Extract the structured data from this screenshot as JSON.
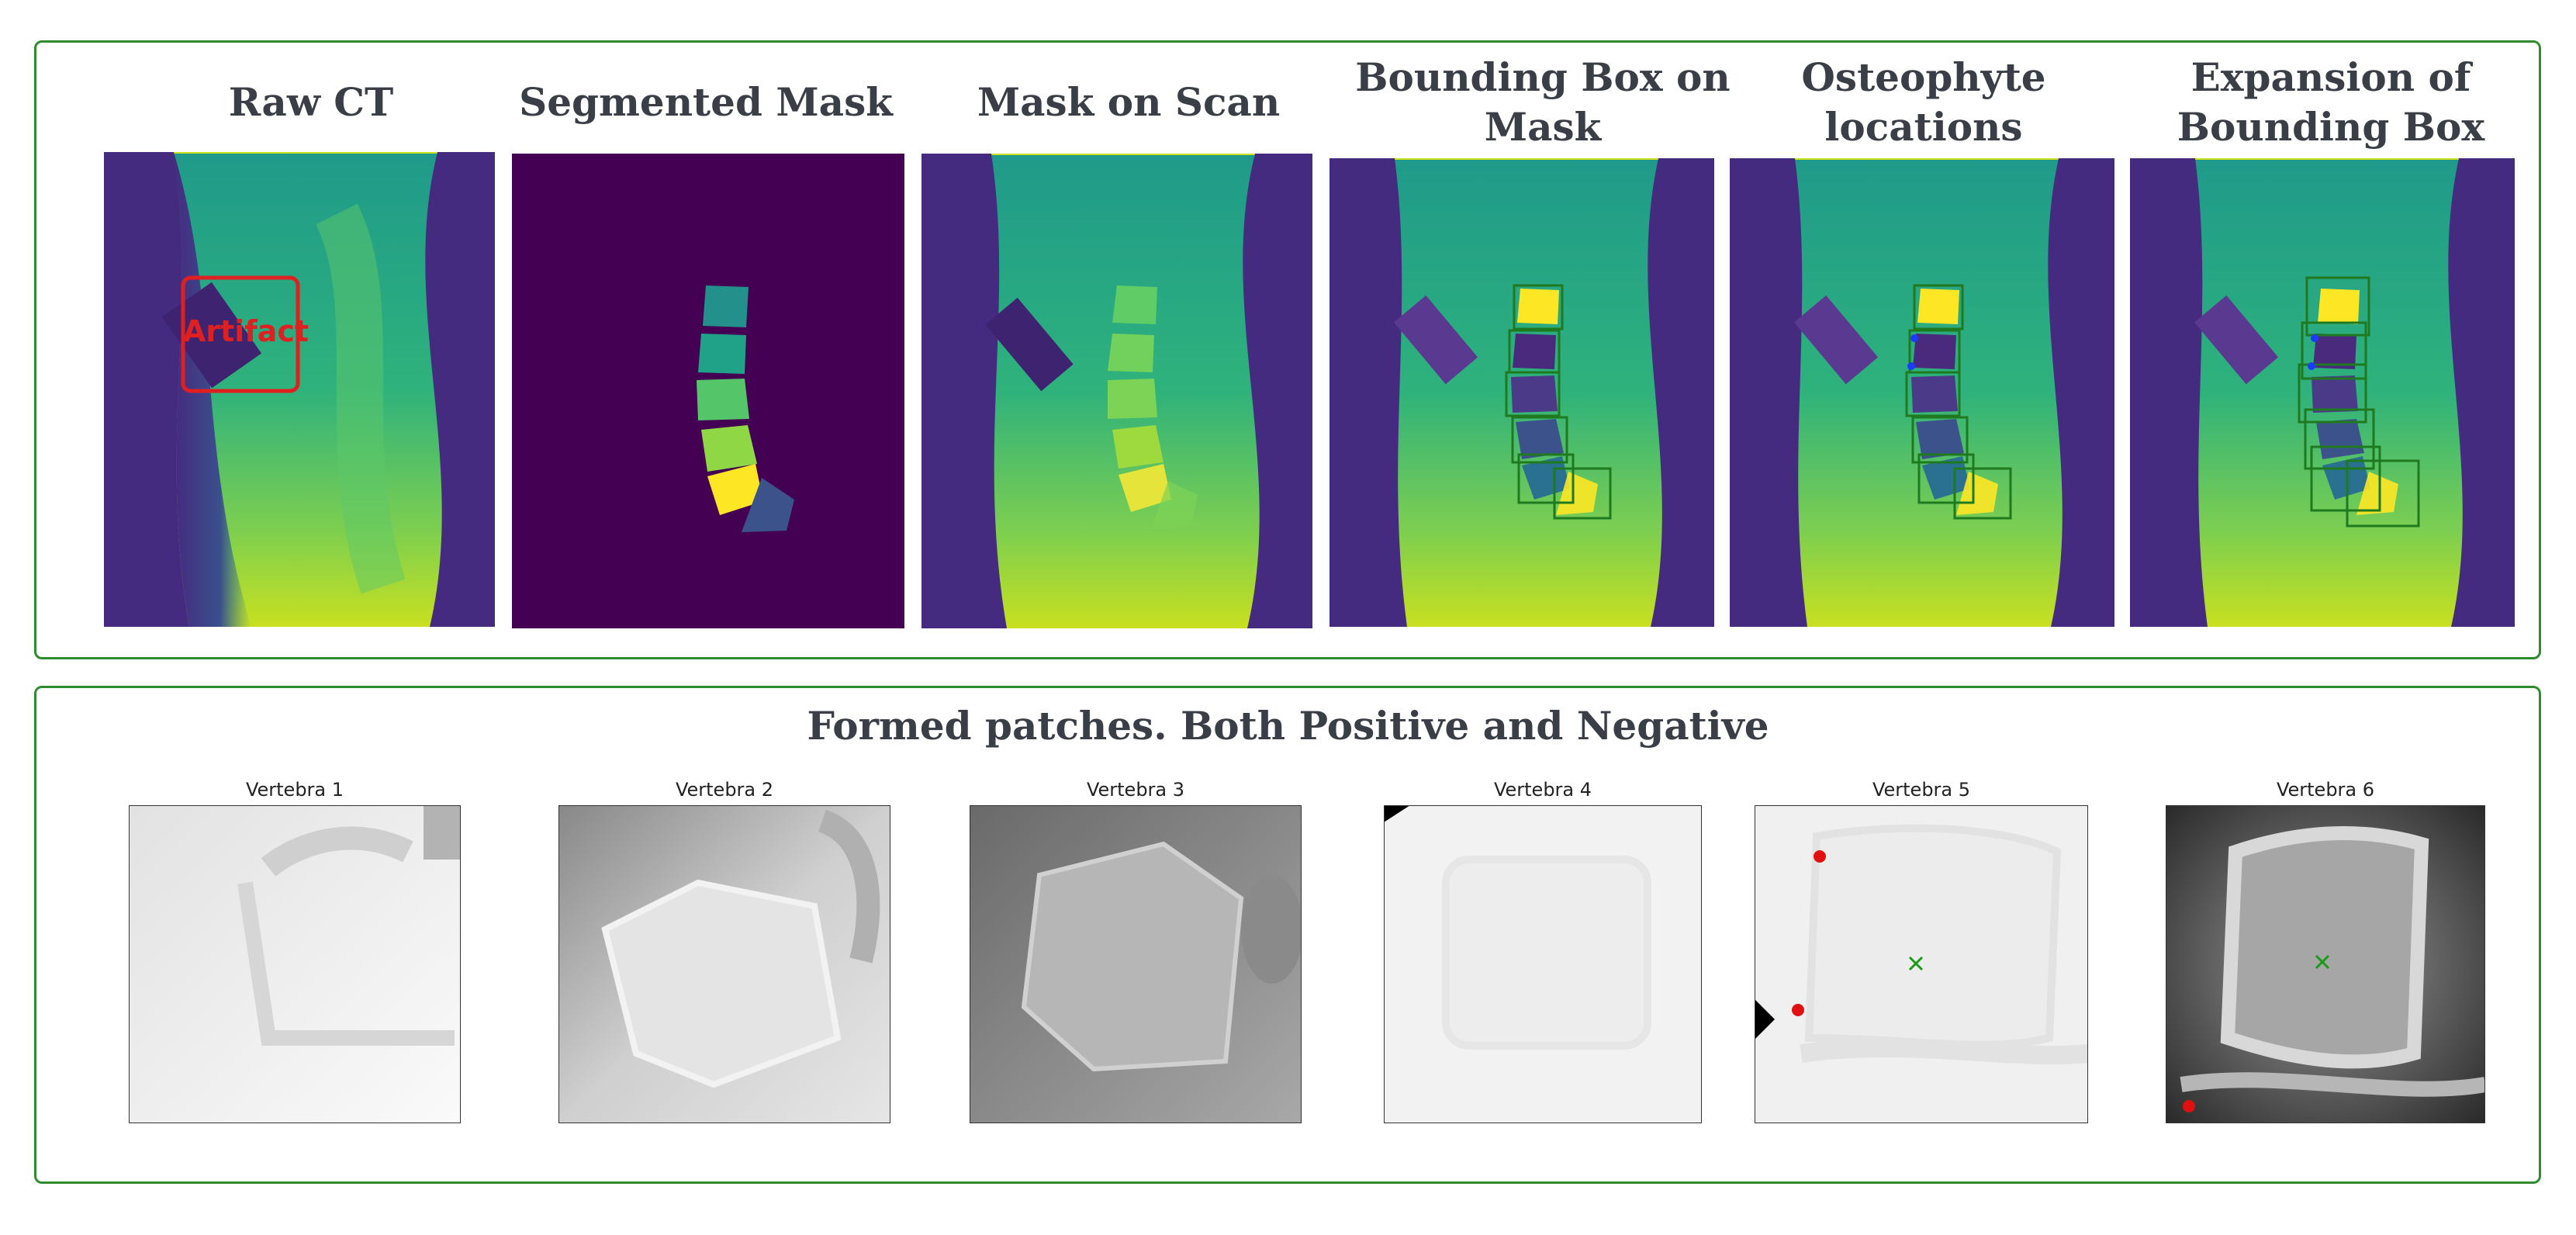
{
  "panels": [
    {
      "title": "Raw CT"
    },
    {
      "title": "Segmented Mask"
    },
    {
      "title": "Mask on Scan"
    },
    {
      "title_line1": "Bounding Box on",
      "title_line2": "Mask"
    },
    {
      "title_line1": "Osteophyte",
      "title_line2": "locations"
    },
    {
      "title_line1": "Expansion of",
      "title_line2": "Bounding Box"
    }
  ],
  "artifact_label": "Artifact",
  "patches": {
    "title": "Formed patches. Both Positive and Negative",
    "items": [
      {
        "label": "Vertebra 1"
      },
      {
        "label": "Vertebra 2"
      },
      {
        "label": "Vertebra 3"
      },
      {
        "label": "Vertebra 4"
      },
      {
        "label": "Vertebra 5"
      },
      {
        "label": "Vertebra 6"
      }
    ]
  },
  "colors": {
    "frame": "#2e8b2e",
    "artifact": "#e02020",
    "marker_red": "#e01010",
    "marker_green": "#1a9a1a",
    "box_green": "#1f7a1f",
    "osteophyte_blue": "#1a3cff"
  }
}
